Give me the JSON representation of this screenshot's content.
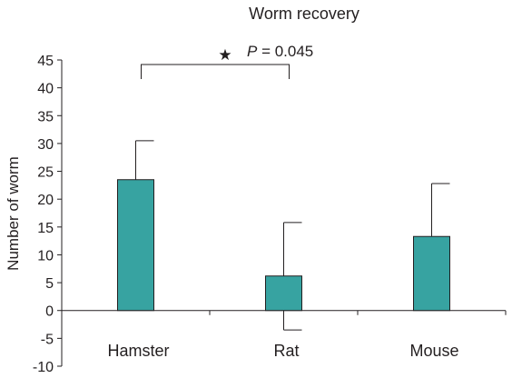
{
  "chart_data": {
    "type": "bar",
    "title": "Worm recovery",
    "xlabel": "",
    "ylabel": "Number of worm",
    "categories": [
      "Hamster",
      "Rat",
      "Mouse"
    ],
    "values": [
      23.5,
      6.2,
      13.3
    ],
    "error_upper": [
      30.5,
      15.8,
      22.8
    ],
    "error_lower": [
      null,
      -3.5,
      null
    ],
    "ylim": [
      -10,
      45
    ],
    "yticks": [
      45,
      40,
      35,
      30,
      25,
      20,
      15,
      10,
      5,
      0,
      -5,
      -10
    ],
    "grid": false,
    "bar_color": "#37a3a1",
    "annotation": {
      "between": [
        "Hamster",
        "Rat"
      ],
      "star": "★",
      "p_symbol": "P",
      "p_text": " = 0.045"
    }
  }
}
